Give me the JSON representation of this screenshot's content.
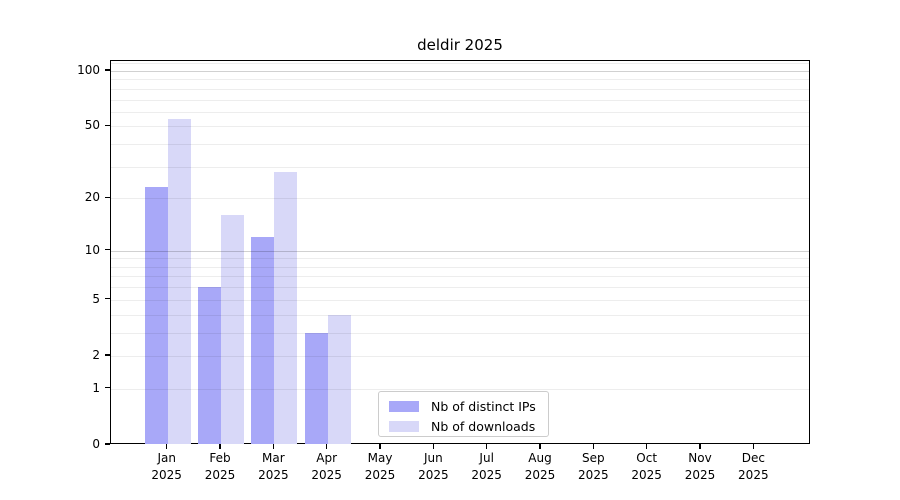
{
  "chart_data": {
    "type": "bar",
    "title": "deldir 2025",
    "year_label": "2025",
    "categories": [
      "Jan",
      "Feb",
      "Mar",
      "Apr",
      "May",
      "Jun",
      "Jul",
      "Aug",
      "Sep",
      "Oct",
      "Nov",
      "Dec"
    ],
    "series": [
      {
        "name": "Nb of distinct IPs",
        "color": "#a8a8f8",
        "values": [
          23,
          6,
          12,
          3,
          0,
          0,
          0,
          0,
          0,
          0,
          0,
          0
        ]
      },
      {
        "name": "Nb of downloads",
        "color": "#d8d8f8",
        "values": [
          55,
          16,
          28,
          4,
          0,
          0,
          0,
          0,
          0,
          0,
          0,
          0
        ]
      }
    ],
    "yticks": [
      0,
      1,
      2,
      5,
      10,
      20,
      50,
      100
    ],
    "ylim": [
      0,
      113
    ],
    "yscale": "log1p",
    "grid": true,
    "legend_position": "bottom-center"
  }
}
